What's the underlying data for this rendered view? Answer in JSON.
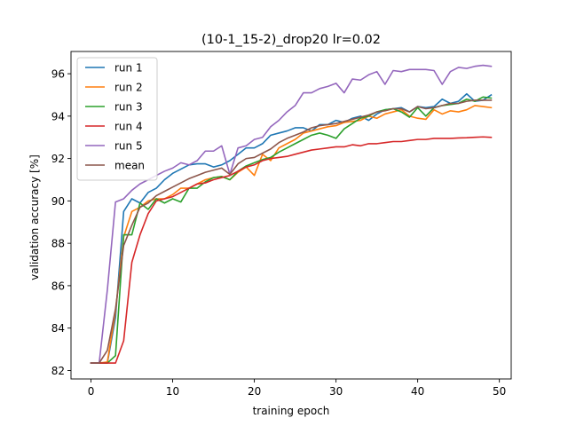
{
  "chart_data": {
    "type": "line",
    "title": "(10-1_15-2)_drop20  lr=0.02",
    "xlabel": "training epoch",
    "ylabel": "validation accuracy [%]",
    "xlim": [
      -2.45,
      51.45
    ],
    "ylim": [
      81.6,
      97.05
    ],
    "xticks": [
      0,
      10,
      20,
      30,
      40,
      50
    ],
    "yticks": [
      82,
      84,
      86,
      88,
      90,
      92,
      94,
      96
    ],
    "grid": false,
    "legend_position": "top-left",
    "x": [
      0,
      1,
      2,
      3,
      4,
      5,
      6,
      7,
      8,
      9,
      10,
      11,
      12,
      13,
      14,
      15,
      16,
      17,
      18,
      19,
      20,
      21,
      22,
      23,
      24,
      25,
      26,
      27,
      28,
      29,
      30,
      31,
      32,
      33,
      34,
      35,
      36,
      37,
      38,
      39,
      40,
      41,
      42,
      43,
      44,
      45,
      46,
      47,
      48,
      49
    ],
    "series": [
      {
        "name": "run 1",
        "color": "#1f77b4",
        "values": [
          82.35,
          82.35,
          82.35,
          84.5,
          89.5,
          90.1,
          89.9,
          90.4,
          90.6,
          91.0,
          91.3,
          91.5,
          91.7,
          91.75,
          91.75,
          91.6,
          91.7,
          91.9,
          92.2,
          92.5,
          92.5,
          92.7,
          93.1,
          93.2,
          93.3,
          93.45,
          93.45,
          93.3,
          93.6,
          93.6,
          93.8,
          93.7,
          93.9,
          94.0,
          93.8,
          94.1,
          94.3,
          94.35,
          94.4,
          94.2,
          94.45,
          94.4,
          94.45,
          94.8,
          94.6,
          94.7,
          95.05,
          94.7,
          94.75,
          95.0
        ]
      },
      {
        "name": "run 2",
        "color": "#ff7f0e",
        "values": [
          82.35,
          82.35,
          82.4,
          84.8,
          88.3,
          89.5,
          89.7,
          90.0,
          90.1,
          90.1,
          90.3,
          90.6,
          90.6,
          90.8,
          91.0,
          91.1,
          91.15,
          91.0,
          91.35,
          91.6,
          91.2,
          92.2,
          91.9,
          92.5,
          92.7,
          92.9,
          93.2,
          93.3,
          93.4,
          93.5,
          93.55,
          93.7,
          93.75,
          93.8,
          94.0,
          93.9,
          94.1,
          94.2,
          94.3,
          94.0,
          93.9,
          93.85,
          94.3,
          94.1,
          94.25,
          94.2,
          94.3,
          94.5,
          94.45,
          94.4
        ]
      },
      {
        "name": "run 3",
        "color": "#2ca02c",
        "values": [
          82.35,
          82.35,
          82.35,
          82.7,
          88.4,
          88.4,
          89.9,
          89.6,
          90.1,
          89.9,
          90.1,
          89.95,
          90.6,
          90.6,
          90.9,
          91.1,
          91.15,
          91.0,
          91.4,
          91.65,
          91.8,
          91.95,
          92.05,
          92.3,
          92.5,
          92.7,
          92.9,
          93.1,
          93.2,
          93.1,
          92.95,
          93.4,
          93.65,
          93.9,
          94.0,
          94.2,
          94.3,
          94.35,
          94.2,
          93.95,
          94.4,
          94.0,
          94.4,
          94.5,
          94.55,
          94.6,
          94.8,
          94.7,
          94.9,
          94.85
        ]
      },
      {
        "name": "run 4",
        "color": "#d62728",
        "values": [
          82.35,
          82.35,
          82.35,
          82.35,
          83.4,
          87.1,
          88.4,
          89.4,
          90.0,
          90.1,
          90.2,
          90.4,
          90.6,
          90.8,
          90.85,
          91.0,
          91.1,
          91.2,
          91.4,
          91.6,
          91.7,
          91.9,
          92.0,
          92.05,
          92.1,
          92.2,
          92.3,
          92.4,
          92.45,
          92.5,
          92.55,
          92.55,
          92.65,
          92.6,
          92.7,
          92.7,
          92.75,
          92.8,
          92.8,
          92.85,
          92.9,
          92.9,
          92.95,
          92.95,
          92.95,
          92.97,
          92.98,
          93.0,
          93.02,
          93.0
        ]
      },
      {
        "name": "run 5",
        "color": "#9467bd",
        "values": [
          82.35,
          82.35,
          85.8,
          89.95,
          90.1,
          90.5,
          90.8,
          91.0,
          91.2,
          91.4,
          91.55,
          91.8,
          91.7,
          91.9,
          92.35,
          92.35,
          92.6,
          91.25,
          92.5,
          92.6,
          92.9,
          93.0,
          93.5,
          93.8,
          94.2,
          94.5,
          95.1,
          95.1,
          95.3,
          95.4,
          95.55,
          95.1,
          95.75,
          95.7,
          95.95,
          96.1,
          95.5,
          96.15,
          96.1,
          96.2,
          96.2,
          96.2,
          96.15,
          95.5,
          96.1,
          96.3,
          96.25,
          96.35,
          96.4,
          96.35
        ]
      },
      {
        "name": "mean",
        "color": "#8c564b",
        "values": [
          82.35,
          82.35,
          82.95,
          84.9,
          87.9,
          88.85,
          89.7,
          89.9,
          90.25,
          90.45,
          90.65,
          90.85,
          91.05,
          91.2,
          91.35,
          91.45,
          91.55,
          91.25,
          91.75,
          92.0,
          92.05,
          92.25,
          92.45,
          92.75,
          92.95,
          93.1,
          93.25,
          93.45,
          93.55,
          93.6,
          93.65,
          93.75,
          93.85,
          93.95,
          94.05,
          94.2,
          94.25,
          94.35,
          94.35,
          94.2,
          94.45,
          94.35,
          94.4,
          94.5,
          94.6,
          94.6,
          94.7,
          94.75,
          94.75,
          94.75
        ]
      }
    ]
  }
}
